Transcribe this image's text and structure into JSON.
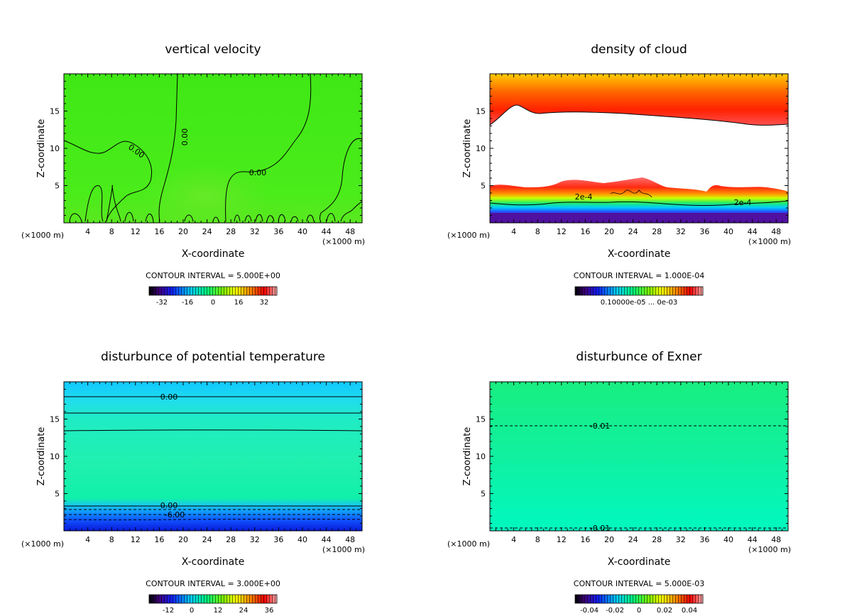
{
  "chart_data": [
    {
      "type": "heatmap",
      "title": "vertical velocity",
      "xlabel": "X-coordinate",
      "ylabel": "Z-coordinate",
      "x_unit": "(×1000 m)",
      "xlim": [
        0,
        50
      ],
      "ylim": [
        0,
        20
      ],
      "xticks": [
        4,
        8,
        12,
        16,
        20,
        24,
        28,
        32,
        36,
        40,
        44,
        48
      ],
      "yticks": [
        5,
        10,
        15
      ],
      "contour_interval_label": "CONTOUR INTERVAL = 5.000E+00",
      "contour_labels": [
        "0.00",
        "0.00",
        "0.00"
      ],
      "colorbar": {
        "ticks": [
          "-32",
          "-16",
          "0",
          "16",
          "32"
        ],
        "range": [
          -40,
          40
        ]
      },
      "field": "nearly uniform ~0 m/s with zero contours near ground and lines"
    },
    {
      "type": "heatmap",
      "title": "density of cloud",
      "xlabel": "X-coordinate",
      "ylabel": "Z-coordinate",
      "x_unit": "(×1000 m)",
      "xlim": [
        0,
        50
      ],
      "ylim": [
        0,
        20
      ],
      "xticks": [
        4,
        8,
        12,
        16,
        20,
        24,
        28,
        32,
        36,
        40,
        44,
        48
      ],
      "yticks": [
        5,
        10,
        15
      ],
      "contour_interval_label": "CONTOUR INTERVAL = 1.000E-04",
      "contour_labels": [
        "2e-4",
        "2e-4"
      ],
      "colorbar": {
        "ticks_text": "0.10000e-05 ... 0e-03",
        "range": [
          0,
          0.001
        ]
      },
      "field": "upper cloud band z≈13–20 km, lower layer z≈1–5 km, clear between"
    },
    {
      "type": "heatmap",
      "title": "disturbunce of potential temperature",
      "xlabel": "X-coordinate",
      "ylabel": "Z-coordinate",
      "x_unit": "(×1000 m)",
      "xlim": [
        0,
        50
      ],
      "ylim": [
        0,
        20
      ],
      "xticks": [
        4,
        8,
        12,
        16,
        20,
        24,
        28,
        32,
        36,
        40,
        44,
        48
      ],
      "yticks": [
        5,
        10,
        15
      ],
      "contour_interval_label": "CONTOUR INTERVAL = 3.000E+00",
      "contour_labels": [
        "0.00",
        "0.00",
        "-6.00"
      ],
      "colorbar": {
        "ticks": [
          "-12",
          "0",
          "12",
          "24",
          "36"
        ],
        "range": [
          -18,
          42
        ]
      },
      "field": "horizontally stratified; cold near surface"
    },
    {
      "type": "heatmap",
      "title": "disturbunce of Exner",
      "xlabel": "X-coordinate",
      "ylabel": "Z-coordinate",
      "x_unit": "(×1000 m)",
      "xlim": [
        0,
        50
      ],
      "ylim": [
        0,
        20
      ],
      "xticks": [
        4,
        8,
        12,
        16,
        20,
        24,
        28,
        32,
        36,
        40,
        44,
        48
      ],
      "yticks": [
        5,
        10,
        15
      ],
      "contour_interval_label": "CONTOUR INTERVAL = 5.000E-03",
      "contour_labels": [
        "-0.01",
        "-0.01"
      ],
      "colorbar": {
        "ticks": [
          "-0.04",
          "-0.02",
          "0",
          "0.02",
          "0.04"
        ],
        "range": [
          -0.05,
          0.05
        ]
      },
      "field": "nearly uniform; dashed -0.01 contours at z≈14 km and near surface"
    }
  ]
}
